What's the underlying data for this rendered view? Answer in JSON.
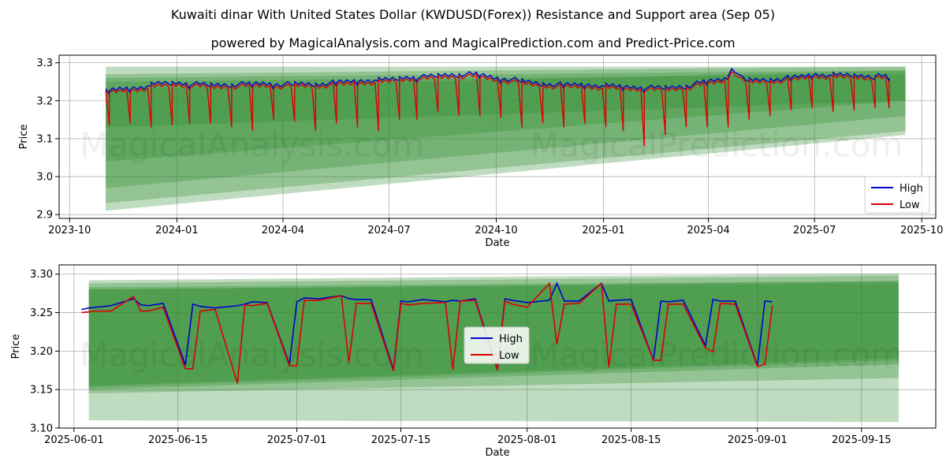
{
  "page": {
    "title": "Kuwaiti dinar With United States Dollar (KWDUSD(Forex)) Resistance and Support area (Sep 05)",
    "subtitle": "powered by MagicalAnalysis.com and MagicalPrediction.com and Predict-Price.com",
    "watermarks": [
      "MagicalAnalysis.com",
      "MagicalPrediction.com"
    ]
  },
  "colors": {
    "high": "#0000cc",
    "low": "#dd0000",
    "band": "#2e8b2e",
    "grid": "#b0b0b0"
  },
  "chart_data": [
    {
      "type": "line",
      "xlabel": "Date",
      "ylabel": "Price",
      "x_ticks": [
        "2023-10",
        "2024-01",
        "2024-04",
        "2024-07",
        "2024-10",
        "2025-01",
        "2025-04",
        "2025-07",
        "2025-10"
      ],
      "y_ticks": [
        "2.9",
        "3.0",
        "3.1",
        "3.2",
        "3.3"
      ],
      "ylim": [
        2.89,
        3.32
      ],
      "xlim": [
        "2023-09-22",
        "2025-10-13"
      ],
      "grid": true,
      "legend": {
        "position": "lower-right",
        "entries": [
          "High",
          "Low"
        ]
      },
      "bands": [
        {
          "x": [
            "2023-11-01",
            "2025-09-17"
          ],
          "upper": [
            3.29,
            3.29
          ],
          "lower": [
            3.13,
            3.2
          ]
        },
        {
          "x": [
            "2023-11-01",
            "2025-09-17"
          ],
          "upper": [
            3.27,
            3.29
          ],
          "lower": [
            3.04,
            3.2
          ]
        },
        {
          "x": [
            "2023-11-01",
            "2025-09-17"
          ],
          "upper": [
            3.26,
            3.28
          ],
          "lower": [
            2.97,
            3.16
          ]
        },
        {
          "x": [
            "2023-11-01",
            "2025-09-17"
          ],
          "upper": [
            3.25,
            3.27
          ],
          "lower": [
            2.93,
            3.12
          ]
        },
        {
          "x": [
            "2023-11-01",
            "2025-09-17"
          ],
          "upper": [
            3.23,
            3.28
          ],
          "lower": [
            2.91,
            3.11
          ]
        }
      ],
      "series": [
        {
          "name": "High",
          "values": [
            [
              "2023-11-01",
              3.225
            ],
            [
              "2023-11-15",
              3.232
            ],
            [
              "2023-12-01",
              3.236
            ],
            [
              "2023-12-15",
              3.245
            ],
            [
              "2024-01-01",
              3.248
            ],
            [
              "2024-01-15",
              3.244
            ],
            [
              "2024-02-01",
              3.242
            ],
            [
              "2024-02-15",
              3.243
            ],
            [
              "2024-03-01",
              3.244
            ],
            [
              "2024-03-15",
              3.246
            ],
            [
              "2024-04-01",
              3.243
            ],
            [
              "2024-04-15",
              3.245
            ],
            [
              "2024-05-01",
              3.244
            ],
            [
              "2024-05-15",
              3.248
            ],
            [
              "2024-06-01",
              3.252
            ],
            [
              "2024-06-15",
              3.254
            ],
            [
              "2024-07-01",
              3.256
            ],
            [
              "2024-07-15",
              3.262
            ],
            [
              "2024-08-01",
              3.263
            ],
            [
              "2024-08-15",
              3.268
            ],
            [
              "2024-09-01",
              3.27
            ],
            [
              "2024-09-15",
              3.27
            ],
            [
              "2024-10-01",
              3.26
            ],
            [
              "2024-10-15",
              3.256
            ],
            [
              "2024-11-01",
              3.248
            ],
            [
              "2024-11-15",
              3.244
            ],
            [
              "2024-12-01",
              3.242
            ],
            [
              "2024-12-15",
              3.243
            ],
            [
              "2025-01-01",
              3.24
            ],
            [
              "2025-01-15",
              3.238
            ],
            [
              "2025-02-01",
              3.236
            ],
            [
              "2025-02-15",
              3.234
            ],
            [
              "2025-03-01",
              3.236
            ],
            [
              "2025-03-15",
              3.24
            ],
            [
              "2025-04-01",
              3.252
            ],
            [
              "2025-04-15",
              3.258
            ],
            [
              "2025-04-22",
              3.288
            ],
            [
              "2025-05-01",
              3.255
            ],
            [
              "2025-05-15",
              3.255
            ],
            [
              "2025-06-01",
              3.258
            ],
            [
              "2025-06-15",
              3.262
            ],
            [
              "2025-07-01",
              3.27
            ],
            [
              "2025-07-15",
              3.268
            ],
            [
              "2025-08-01",
              3.268
            ],
            [
              "2025-08-15",
              3.266
            ],
            [
              "2025-09-01",
              3.264
            ],
            [
              "2025-09-03",
              3.262
            ]
          ]
        },
        {
          "name": "Low",
          "values": [
            [
              "2023-11-01",
              3.22
            ],
            [
              "2023-11-15",
              3.226
            ],
            [
              "2023-12-01",
              3.23
            ],
            [
              "2023-12-15",
              3.238
            ],
            [
              "2024-01-01",
              3.242
            ],
            [
              "2024-01-15",
              3.238
            ],
            [
              "2024-02-01",
              3.236
            ],
            [
              "2024-02-15",
              3.237
            ],
            [
              "2024-03-01",
              3.238
            ],
            [
              "2024-03-15",
              3.24
            ],
            [
              "2024-04-01",
              3.237
            ],
            [
              "2024-04-15",
              3.239
            ],
            [
              "2024-05-01",
              3.238
            ],
            [
              "2024-05-15",
              3.242
            ],
            [
              "2024-06-01",
              3.246
            ],
            [
              "2024-06-15",
              3.248
            ],
            [
              "2024-07-01",
              3.25
            ],
            [
              "2024-07-15",
              3.256
            ],
            [
              "2024-08-01",
              3.257
            ],
            [
              "2024-08-15",
              3.262
            ],
            [
              "2024-09-01",
              3.264
            ],
            [
              "2024-09-15",
              3.264
            ],
            [
              "2024-10-01",
              3.254
            ],
            [
              "2024-10-15",
              3.25
            ],
            [
              "2024-11-01",
              3.242
            ],
            [
              "2024-11-15",
              3.238
            ],
            [
              "2024-12-01",
              3.236
            ],
            [
              "2024-12-15",
              3.237
            ],
            [
              "2025-01-01",
              3.234
            ],
            [
              "2025-01-15",
              3.232
            ],
            [
              "2025-02-01",
              3.23
            ],
            [
              "2025-02-15",
              3.228
            ],
            [
              "2025-03-01",
              3.23
            ],
            [
              "2025-03-15",
              3.234
            ],
            [
              "2025-04-01",
              3.246
            ],
            [
              "2025-04-15",
              3.252
            ],
            [
              "2025-04-22",
              3.28
            ],
            [
              "2025-05-01",
              3.249
            ],
            [
              "2025-05-15",
              3.249
            ],
            [
              "2025-06-01",
              3.252
            ],
            [
              "2025-06-15",
              3.256
            ],
            [
              "2025-07-01",
              3.264
            ],
            [
              "2025-07-15",
              3.262
            ],
            [
              "2025-08-01",
              3.262
            ],
            [
              "2025-08-15",
              3.26
            ],
            [
              "2025-09-01",
              3.258
            ],
            [
              "2025-09-03",
              3.256
            ]
          ]
        }
      ],
      "dips_low": [
        [
          "2023-11-03",
          3.135
        ],
        [
          "2023-11-20",
          3.14
        ],
        [
          "2023-12-08",
          3.13
        ],
        [
          "2023-12-26",
          3.135
        ],
        [
          "2024-01-12",
          3.14
        ],
        [
          "2024-01-30",
          3.14
        ],
        [
          "2024-02-16",
          3.13
        ],
        [
          "2024-03-05",
          3.12
        ],
        [
          "2024-03-22",
          3.15
        ],
        [
          "2024-04-10",
          3.145
        ],
        [
          "2024-04-28",
          3.12
        ],
        [
          "2024-05-15",
          3.14
        ],
        [
          "2024-06-02",
          3.13
        ],
        [
          "2024-06-20",
          3.12
        ],
        [
          "2024-07-08",
          3.15
        ],
        [
          "2024-07-25",
          3.15
        ],
        [
          "2024-08-12",
          3.17
        ],
        [
          "2024-08-30",
          3.16
        ],
        [
          "2024-09-16",
          3.16
        ],
        [
          "2024-10-04",
          3.155
        ],
        [
          "2024-10-22",
          3.13
        ],
        [
          "2024-11-08",
          3.14
        ],
        [
          "2024-11-26",
          3.13
        ],
        [
          "2024-12-14",
          3.14
        ],
        [
          "2025-01-01",
          3.13
        ],
        [
          "2025-01-18",
          3.12
        ],
        [
          "2025-02-05",
          3.08
        ],
        [
          "2025-02-22",
          3.11
        ],
        [
          "2025-03-12",
          3.13
        ],
        [
          "2025-03-30",
          3.13
        ],
        [
          "2025-04-17",
          3.13
        ],
        [
          "2025-05-05",
          3.15
        ],
        [
          "2025-05-22",
          3.16
        ],
        [
          "2025-06-09",
          3.175
        ],
        [
          "2025-06-27",
          3.18
        ],
        [
          "2025-07-15",
          3.17
        ],
        [
          "2025-08-02",
          3.175
        ],
        [
          "2025-08-20",
          3.18
        ],
        [
          "2025-09-01",
          3.18
        ]
      ]
    },
    {
      "type": "line",
      "xlabel": "Date",
      "ylabel": "Price",
      "x_ticks": [
        "2025-06-01",
        "2025-06-15",
        "2025-07-01",
        "2025-07-15",
        "2025-08-01",
        "2025-08-15",
        "2025-09-01",
        "2025-09-15"
      ],
      "y_ticks": [
        "3.10",
        "3.15",
        "3.20",
        "3.25",
        "3.30"
      ],
      "ylim": [
        3.1,
        3.312
      ],
      "xlim": [
        "2025-05-30",
        "2025-09-25"
      ],
      "grid": true,
      "legend": {
        "position": "center",
        "entries": [
          "High",
          "Low"
        ]
      },
      "bands": [
        {
          "x": [
            "2025-06-03",
            "2025-09-20"
          ],
          "upper": [
            3.292,
            3.301
          ],
          "lower": [
            3.11,
            3.108
          ]
        },
        {
          "x": [
            "2025-06-03",
            "2025-09-20"
          ],
          "upper": [
            3.288,
            3.298
          ],
          "lower": [
            3.145,
            3.165
          ]
        },
        {
          "x": [
            "2025-06-03",
            "2025-09-20"
          ],
          "upper": [
            3.283,
            3.291
          ],
          "lower": [
            3.15,
            3.183
          ]
        },
        {
          "x": [
            "2025-06-03",
            "2025-09-20"
          ],
          "upper": [
            3.28,
            3.288
          ],
          "lower": [
            3.153,
            3.188
          ]
        },
        {
          "x": [
            "2025-06-03",
            "2025-09-20"
          ],
          "upper": [
            3.28,
            3.291
          ],
          "lower": [
            3.155,
            3.191
          ]
        }
      ],
      "series": [
        {
          "name": "High",
          "x": [
            "2025-06-02",
            "2025-06-03",
            "2025-06-04",
            "2025-06-06",
            "2025-06-09",
            "2025-06-10",
            "2025-06-11",
            "2025-06-13",
            "2025-06-16",
            "2025-06-17",
            "2025-06-18",
            "2025-06-20",
            "2025-06-23",
            "2025-06-24",
            "2025-06-25",
            "2025-06-27",
            "2025-06-30",
            "2025-07-01",
            "2025-07-02",
            "2025-07-04",
            "2025-07-07",
            "2025-07-08",
            "2025-07-09",
            "2025-07-11",
            "2025-07-14",
            "2025-07-15",
            "2025-07-16",
            "2025-07-18",
            "2025-07-21",
            "2025-07-22",
            "2025-07-23",
            "2025-07-25",
            "2025-07-28",
            "2025-07-29",
            "2025-07-30",
            "2025-08-01",
            "2025-08-04",
            "2025-08-05",
            "2025-08-06",
            "2025-08-08",
            "2025-08-11",
            "2025-08-12",
            "2025-08-13",
            "2025-08-15",
            "2025-08-18",
            "2025-08-19",
            "2025-08-20",
            "2025-08-22",
            "2025-08-25",
            "2025-08-26",
            "2025-08-27",
            "2025-08-29",
            "2025-09-01",
            "2025-09-02",
            "2025-09-03"
          ],
          "values": [
            3.254,
            3.256,
            3.257,
            3.259,
            3.268,
            3.26,
            3.259,
            3.262,
            3.182,
            3.261,
            3.258,
            3.256,
            3.259,
            3.261,
            3.264,
            3.263,
            3.183,
            3.264,
            3.269,
            3.268,
            3.272,
            3.268,
            3.267,
            3.267,
            3.176,
            3.265,
            3.264,
            3.267,
            3.264,
            3.266,
            3.265,
            3.268,
            3.176,
            3.268,
            3.266,
            3.263,
            3.266,
            3.288,
            3.265,
            3.265,
            3.288,
            3.265,
            3.266,
            3.267,
            3.188,
            3.265,
            3.264,
            3.266,
            3.207,
            3.267,
            3.265,
            3.265,
            3.181,
            3.265,
            3.264
          ]
        },
        {
          "name": "Low",
          "x": [
            "2025-06-02",
            "2025-06-03",
            "2025-06-04",
            "2025-06-06",
            "2025-06-09",
            "2025-06-10",
            "2025-06-11",
            "2025-06-13",
            "2025-06-16",
            "2025-06-17",
            "2025-06-18",
            "2025-06-20",
            "2025-06-23",
            "2025-06-24",
            "2025-06-25",
            "2025-06-27",
            "2025-06-30",
            "2025-07-01",
            "2025-07-02",
            "2025-07-04",
            "2025-07-07",
            "2025-07-08",
            "2025-07-09",
            "2025-07-11",
            "2025-07-14",
            "2025-07-15",
            "2025-07-16",
            "2025-07-18",
            "2025-07-21",
            "2025-07-22",
            "2025-07-23",
            "2025-07-25",
            "2025-07-28",
            "2025-07-29",
            "2025-07-30",
            "2025-08-01",
            "2025-08-04",
            "2025-08-05",
            "2025-08-06",
            "2025-08-08",
            "2025-08-11",
            "2025-08-12",
            "2025-08-13",
            "2025-08-15",
            "2025-08-18",
            "2025-08-19",
            "2025-08-20",
            "2025-08-22",
            "2025-08-25",
            "2025-08-26",
            "2025-08-27",
            "2025-08-29",
            "2025-09-01",
            "2025-09-02",
            "2025-09-03"
          ],
          "values": [
            3.25,
            3.251,
            3.252,
            3.252,
            3.271,
            3.252,
            3.252,
            3.257,
            3.177,
            3.177,
            3.252,
            3.254,
            3.158,
            3.26,
            3.259,
            3.262,
            3.181,
            3.181,
            3.266,
            3.266,
            3.272,
            3.185,
            3.262,
            3.262,
            3.174,
            3.262,
            3.26,
            3.262,
            3.263,
            3.176,
            3.265,
            3.266,
            3.175,
            3.265,
            3.261,
            3.257,
            3.288,
            3.209,
            3.261,
            3.262,
            3.288,
            3.179,
            3.261,
            3.261,
            3.188,
            3.188,
            3.261,
            3.261,
            3.204,
            3.199,
            3.262,
            3.261,
            3.18,
            3.183,
            3.259
          ]
        }
      ]
    }
  ]
}
